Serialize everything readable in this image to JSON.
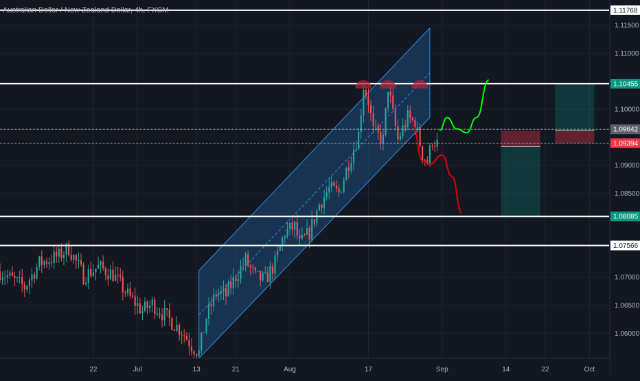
{
  "title": "Australian Dollar / New Zealand Dollar, 4h, FXCM",
  "colors": {
    "background": "#131722",
    "grid": "#1f2430",
    "candle_up": "#26a69a",
    "candle_down": "#ef5350",
    "channel_fill": "#1e4a7a",
    "channel_line": "#2f8cd8",
    "bull_path": "#00ff00",
    "bear_path": "#e00000",
    "level_line": "#ffffff",
    "label_green": "#089981",
    "label_red": "#f23645",
    "label_gray": "#5d606b",
    "label_white": "#ffffff"
  },
  "chart_data": {
    "type": "candlestick",
    "symbol": "AUDNZD",
    "timeframe": "4h",
    "y_axis": {
      "range": [
        1.0555,
        1.1195
      ],
      "ticks": [
        "1.11500",
        "1.11000",
        "1.10000",
        "1.09000",
        "1.08500",
        "1.07000",
        "1.06500",
        "1.06000"
      ]
    },
    "x_axis": {
      "range_days": [
        -28,
        96
      ],
      "ticks": [
        {
          "label": "22",
          "day": -9
        },
        {
          "label": "Jul",
          "day": 0
        },
        {
          "label": "13",
          "day": 12
        },
        {
          "label": "21",
          "day": 20
        },
        {
          "label": "Aug",
          "day": 31
        },
        {
          "label": "17",
          "day": 47
        },
        {
          "label": "Sep",
          "day": 62
        },
        {
          "label": "14",
          "day": 75
        },
        {
          "label": "22",
          "day": 83
        },
        {
          "label": "Oct",
          "day": 92
        }
      ]
    },
    "horizontal_levels": [
      {
        "price": 1.11768,
        "label": "1.11768",
        "style": "white"
      },
      {
        "price": 1.10455,
        "label": "1.10455",
        "style": "green"
      },
      {
        "price": 1.09642,
        "label": "1.09642",
        "style": "gray"
      },
      {
        "price": 1.09394,
        "label": "1.09394",
        "style": "red"
      },
      {
        "price": 1.08085,
        "label": "1.08085",
        "style": "green"
      },
      {
        "price": 1.07566,
        "label": "1.07566",
        "style": "white"
      }
    ],
    "channel": {
      "start_day": 12.5,
      "end_day": 59.5,
      "upper_start": 1.0712,
      "upper_end": 1.1145,
      "lower_start": 1.0555,
      "lower_end": 1.0985,
      "mid_start": 1.0633,
      "mid_end": 1.1065
    },
    "peaks": [
      {
        "day": 46,
        "price": 1.1047
      },
      {
        "day": 51,
        "price": 1.1047
      },
      {
        "day": 57.5,
        "price": 1.1047
      }
    ],
    "projections": {
      "bullish": [
        [
          61.5,
          1.0962
        ],
        [
          63,
          1.0985
        ],
        [
          65,
          1.0965
        ],
        [
          67,
          1.0958
        ],
        [
          69,
          1.0985
        ],
        [
          71.5,
          1.1052
        ]
      ],
      "bearish": [
        [
          56,
          1.0972
        ],
        [
          58,
          1.0908
        ],
        [
          59.5,
          1.0902
        ],
        [
          62,
          1.0918
        ],
        [
          64,
          1.088
        ],
        [
          66,
          1.0815
        ]
      ]
    },
    "positions": [
      {
        "type": "short",
        "start_day": 74,
        "end_day": 82,
        "entry": 1.09334,
        "stop": 1.09614,
        "target": 1.08085
      },
      {
        "type": "long",
        "start_day": 85,
        "end_day": 93,
        "entry": 1.09614,
        "stop": 1.09394,
        "target": 1.10455
      }
    ],
    "key_points": [
      [
        -28,
        1.071
      ],
      [
        -23,
        1.0682
      ],
      [
        -20,
        1.0725
      ],
      [
        -16,
        1.0738
      ],
      [
        -14,
        1.0752
      ],
      [
        -11,
        1.0702
      ],
      [
        -8,
        1.0718
      ],
      [
        -5,
        1.0705
      ],
      [
        -2,
        1.0668
      ],
      [
        1,
        1.064
      ],
      [
        3,
        1.0652
      ],
      [
        6,
        1.0628
      ],
      [
        9,
        1.0604
      ],
      [
        11,
        1.0578
      ],
      [
        12.5,
        1.0565
      ],
      [
        14,
        1.0628
      ],
      [
        16,
        1.0672
      ],
      [
        18,
        1.0668
      ],
      [
        20,
        1.0702
      ],
      [
        22,
        1.073
      ],
      [
        24,
        1.07
      ],
      [
        26,
        1.0695
      ],
      [
        28,
        1.0725
      ],
      [
        30,
        1.078
      ],
      [
        32,
        1.079
      ],
      [
        33,
        1.0758
      ],
      [
        35,
        1.078
      ],
      [
        37,
        1.083
      ],
      [
        39,
        1.0858
      ],
      [
        41,
        1.085
      ],
      [
        43,
        1.0905
      ],
      [
        45,
        1.0955
      ],
      [
        46,
        1.1042
      ],
      [
        47,
        1.1015
      ],
      [
        48,
        1.096
      ],
      [
        50,
        1.0945
      ],
      [
        51,
        1.104
      ],
      [
        52,
        1.099
      ],
      [
        53,
        1.0945
      ],
      [
        55,
        1.0985
      ],
      [
        56.5,
        1.0975
      ],
      [
        58,
        1.092
      ],
      [
        59,
        1.0905
      ],
      [
        60,
        1.0945
      ],
      [
        61,
        1.0938
      ]
    ]
  }
}
